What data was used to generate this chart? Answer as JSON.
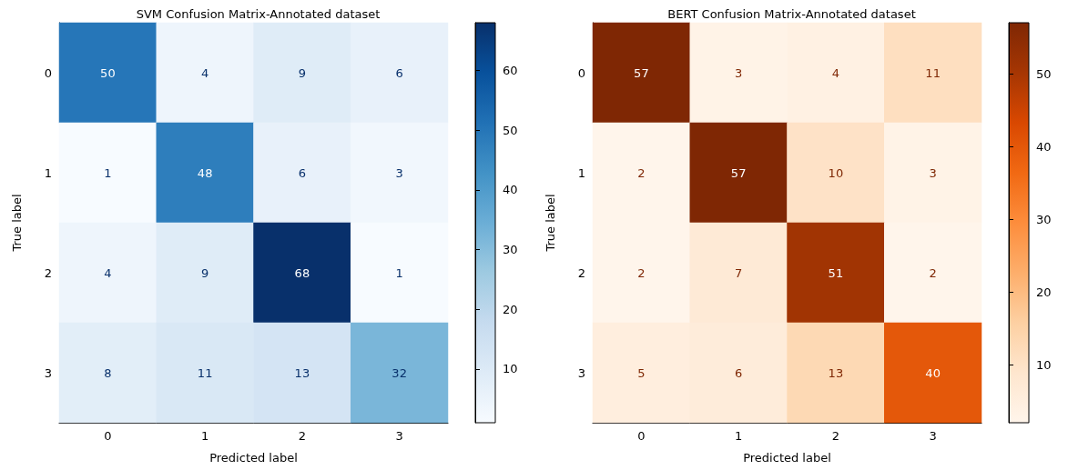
{
  "chart_data": [
    {
      "type": "heatmap",
      "title": "SVM Confusion Matrix-Annotated dataset",
      "xlabel": "Predicted label",
      "ylabel": "True label",
      "categories": [
        "0",
        "1",
        "2",
        "3"
      ],
      "y_categories": [
        "0",
        "1",
        "2",
        "3"
      ],
      "cells": [
        [
          50,
          4,
          9,
          6
        ],
        [
          1,
          48,
          6,
          3
        ],
        [
          4,
          9,
          68,
          1
        ],
        [
          8,
          11,
          13,
          32
        ]
      ],
      "clim": [
        1,
        68
      ],
      "cticks": [
        10,
        20,
        30,
        40,
        50,
        60
      ],
      "data_labels": true,
      "colors": [
        "#f7fbff",
        "#deebf7",
        "#c6dbef",
        "#9ecae1",
        "#6baed6",
        "#4292c6",
        "#2171b5",
        "#08519c",
        "#08306b"
      ]
    },
    {
      "type": "heatmap",
      "title": "BERT Confusion Matrix-Annotated dataset",
      "xlabel": "Predicted label",
      "ylabel": "True label",
      "categories": [
        "0",
        "1",
        "2",
        "3"
      ],
      "y_categories": [
        "0",
        "1",
        "2",
        "3"
      ],
      "cells": [
        [
          57,
          3,
          4,
          11
        ],
        [
          2,
          57,
          10,
          3
        ],
        [
          2,
          7,
          51,
          2
        ],
        [
          5,
          6,
          13,
          40
        ]
      ],
      "clim": [
        2,
        57
      ],
      "cticks": [
        10,
        20,
        30,
        40,
        50
      ],
      "data_labels": true,
      "colors": [
        "#fff5eb",
        "#fee6ce",
        "#fdd0a2",
        "#fdae6b",
        "#fd8d3c",
        "#f16913",
        "#d94801",
        "#a63603",
        "#7f2704"
      ]
    }
  ]
}
